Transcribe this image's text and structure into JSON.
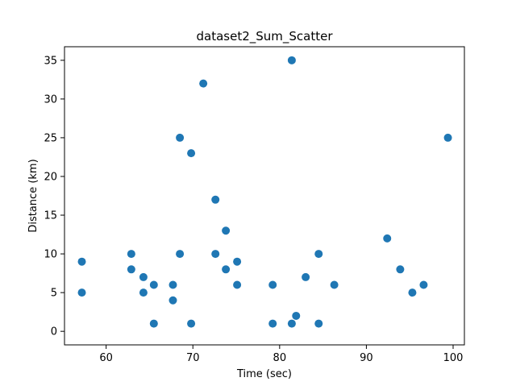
{
  "chart_data": {
    "type": "scatter",
    "title": "dataset2_Sum_Scatter",
    "xlabel": "Time (sec)",
    "ylabel": "Distance (km)",
    "xlim": [
      55.2,
      101.3
    ],
    "ylim": [
      -1.75,
      36.75
    ],
    "xticks": [
      60,
      70,
      80,
      90,
      100
    ],
    "yticks": [
      0,
      5,
      10,
      15,
      20,
      25,
      30,
      35
    ],
    "grid": false,
    "marker_color": "#1f77b4",
    "points": [
      {
        "x": 57.2,
        "y": 9
      },
      {
        "x": 57.2,
        "y": 5
      },
      {
        "x": 62.9,
        "y": 10
      },
      {
        "x": 62.9,
        "y": 8
      },
      {
        "x": 64.3,
        "y": 7
      },
      {
        "x": 64.3,
        "y": 5
      },
      {
        "x": 65.5,
        "y": 6
      },
      {
        "x": 65.5,
        "y": 1
      },
      {
        "x": 67.7,
        "y": 6
      },
      {
        "x": 67.7,
        "y": 4
      },
      {
        "x": 68.5,
        "y": 25
      },
      {
        "x": 68.5,
        "y": 10
      },
      {
        "x": 69.8,
        "y": 23
      },
      {
        "x": 69.8,
        "y": 1
      },
      {
        "x": 71.2,
        "y": 32
      },
      {
        "x": 72.6,
        "y": 17
      },
      {
        "x": 72.6,
        "y": 10
      },
      {
        "x": 73.8,
        "y": 13
      },
      {
        "x": 73.8,
        "y": 8
      },
      {
        "x": 75.1,
        "y": 9
      },
      {
        "x": 75.1,
        "y": 6
      },
      {
        "x": 79.2,
        "y": 6
      },
      {
        "x": 79.2,
        "y": 1
      },
      {
        "x": 81.4,
        "y": 35
      },
      {
        "x": 81.4,
        "y": 1
      },
      {
        "x": 81.9,
        "y": 2
      },
      {
        "x": 83.0,
        "y": 7
      },
      {
        "x": 84.5,
        "y": 10
      },
      {
        "x": 84.5,
        "y": 1
      },
      {
        "x": 86.3,
        "y": 6
      },
      {
        "x": 92.4,
        "y": 12
      },
      {
        "x": 93.9,
        "y": 8
      },
      {
        "x": 95.3,
        "y": 5
      },
      {
        "x": 96.6,
        "y": 6
      },
      {
        "x": 99.4,
        "y": 25
      }
    ]
  }
}
